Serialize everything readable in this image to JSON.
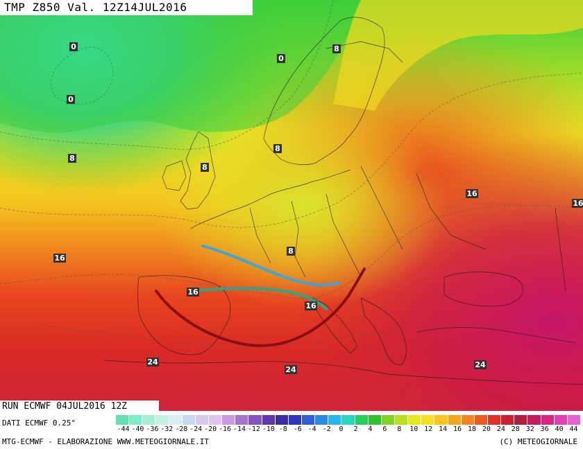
{
  "header": {
    "title": "TMP  Z850  Val.  12Z14JUL2016"
  },
  "run_info": "RUN ECMWF  04JUL2016  12Z",
  "footer": {
    "dati": "DATI ECMWF 0.25°",
    "credit_left": "MTG-ECMWF - ELABORAZIONE WWW.METEOGIORNALE.IT",
    "credit_right": "(C) METEOGIORNALE"
  },
  "map_labels": {
    "l1": "0",
    "l2": "0",
    "l3": "0",
    "l4": "8",
    "l5": "8",
    "l6": "8",
    "l7": "8",
    "l8": "8",
    "l9": "16",
    "l10": "16",
    "l11": "16",
    "l12": "16",
    "l13": "16",
    "l14": "24",
    "l15": "24",
    "l16": "24"
  },
  "scale": {
    "labels": [
      "-44",
      "-40",
      "-36",
      "-32",
      "-28",
      "-24",
      "-20",
      "-16",
      "-14",
      "-12",
      "-10",
      "-8",
      "-6",
      "-4",
      "-2",
      "0",
      "2",
      "4",
      "6",
      "8",
      "10",
      "12",
      "14",
      "16",
      "18",
      "20",
      "24",
      "28",
      "32",
      "36",
      "40",
      "44"
    ],
    "colors": [
      "#5fe3b0",
      "#7eecc4",
      "#a3f0d6",
      "#c2f2e6",
      "#d8eef0",
      "#c9d6ef",
      "#d6c8ef",
      "#e0c3ef",
      "#c99be0",
      "#a673cf",
      "#8353bf",
      "#6036ad",
      "#3c2ea0",
      "#2c34c0",
      "#2f5fd8",
      "#2a8be6",
      "#22b8ef",
      "#23d7c2",
      "#25d05a",
      "#2fc42e",
      "#7ed323",
      "#b8e01d",
      "#e6ea1b",
      "#f6e21a",
      "#f9c41c",
      "#f8a51e",
      "#f5861f",
      "#ef5a1f",
      "#e32f25",
      "#d01f2c",
      "#b51b40",
      "#c41c5f",
      "#d82387",
      "#e33fb4",
      "#e862d6"
    ]
  },
  "overlay_colors": {
    "blue_line": "#3aa6e0",
    "green_line": "#24a98c",
    "arc": "#8b0f12"
  }
}
